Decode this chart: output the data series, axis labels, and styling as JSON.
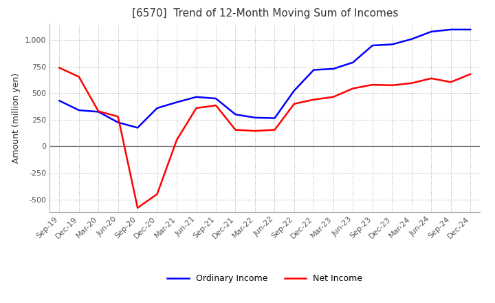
{
  "title": "[6570]  Trend of 12-Month Moving Sum of Incomes",
  "ylabel": "Amount (million yen)",
  "ylim": [
    -620,
    1150
  ],
  "yticks": [
    -500,
    -250,
    0,
    250,
    500,
    750,
    1000
  ],
  "x_labels": [
    "Sep-19",
    "Dec-19",
    "Mar-20",
    "Jun-20",
    "Sep-20",
    "Dec-20",
    "Mar-21",
    "Jun-21",
    "Sep-21",
    "Dec-21",
    "Mar-22",
    "Jun-22",
    "Sep-22",
    "Dec-22",
    "Mar-23",
    "Jun-23",
    "Sep-23",
    "Dec-23",
    "Mar-24",
    "Jun-24",
    "Sep-24",
    "Dec-24"
  ],
  "ordinary_income": [
    430,
    340,
    325,
    225,
    175,
    360,
    415,
    465,
    450,
    300,
    270,
    265,
    525,
    720,
    730,
    790,
    950,
    960,
    1010,
    1080,
    1100,
    1100
  ],
  "net_income": [
    740,
    655,
    330,
    280,
    -580,
    -450,
    60,
    360,
    385,
    155,
    145,
    155,
    400,
    440,
    465,
    545,
    580,
    575,
    595,
    640,
    605,
    680
  ],
  "ordinary_color": "#0000ff",
  "net_color": "#ff0000",
  "background_color": "#ffffff",
  "title_fontsize": 11,
  "label_fontsize": 9,
  "tick_fontsize": 8,
  "legend_fontsize": 9
}
